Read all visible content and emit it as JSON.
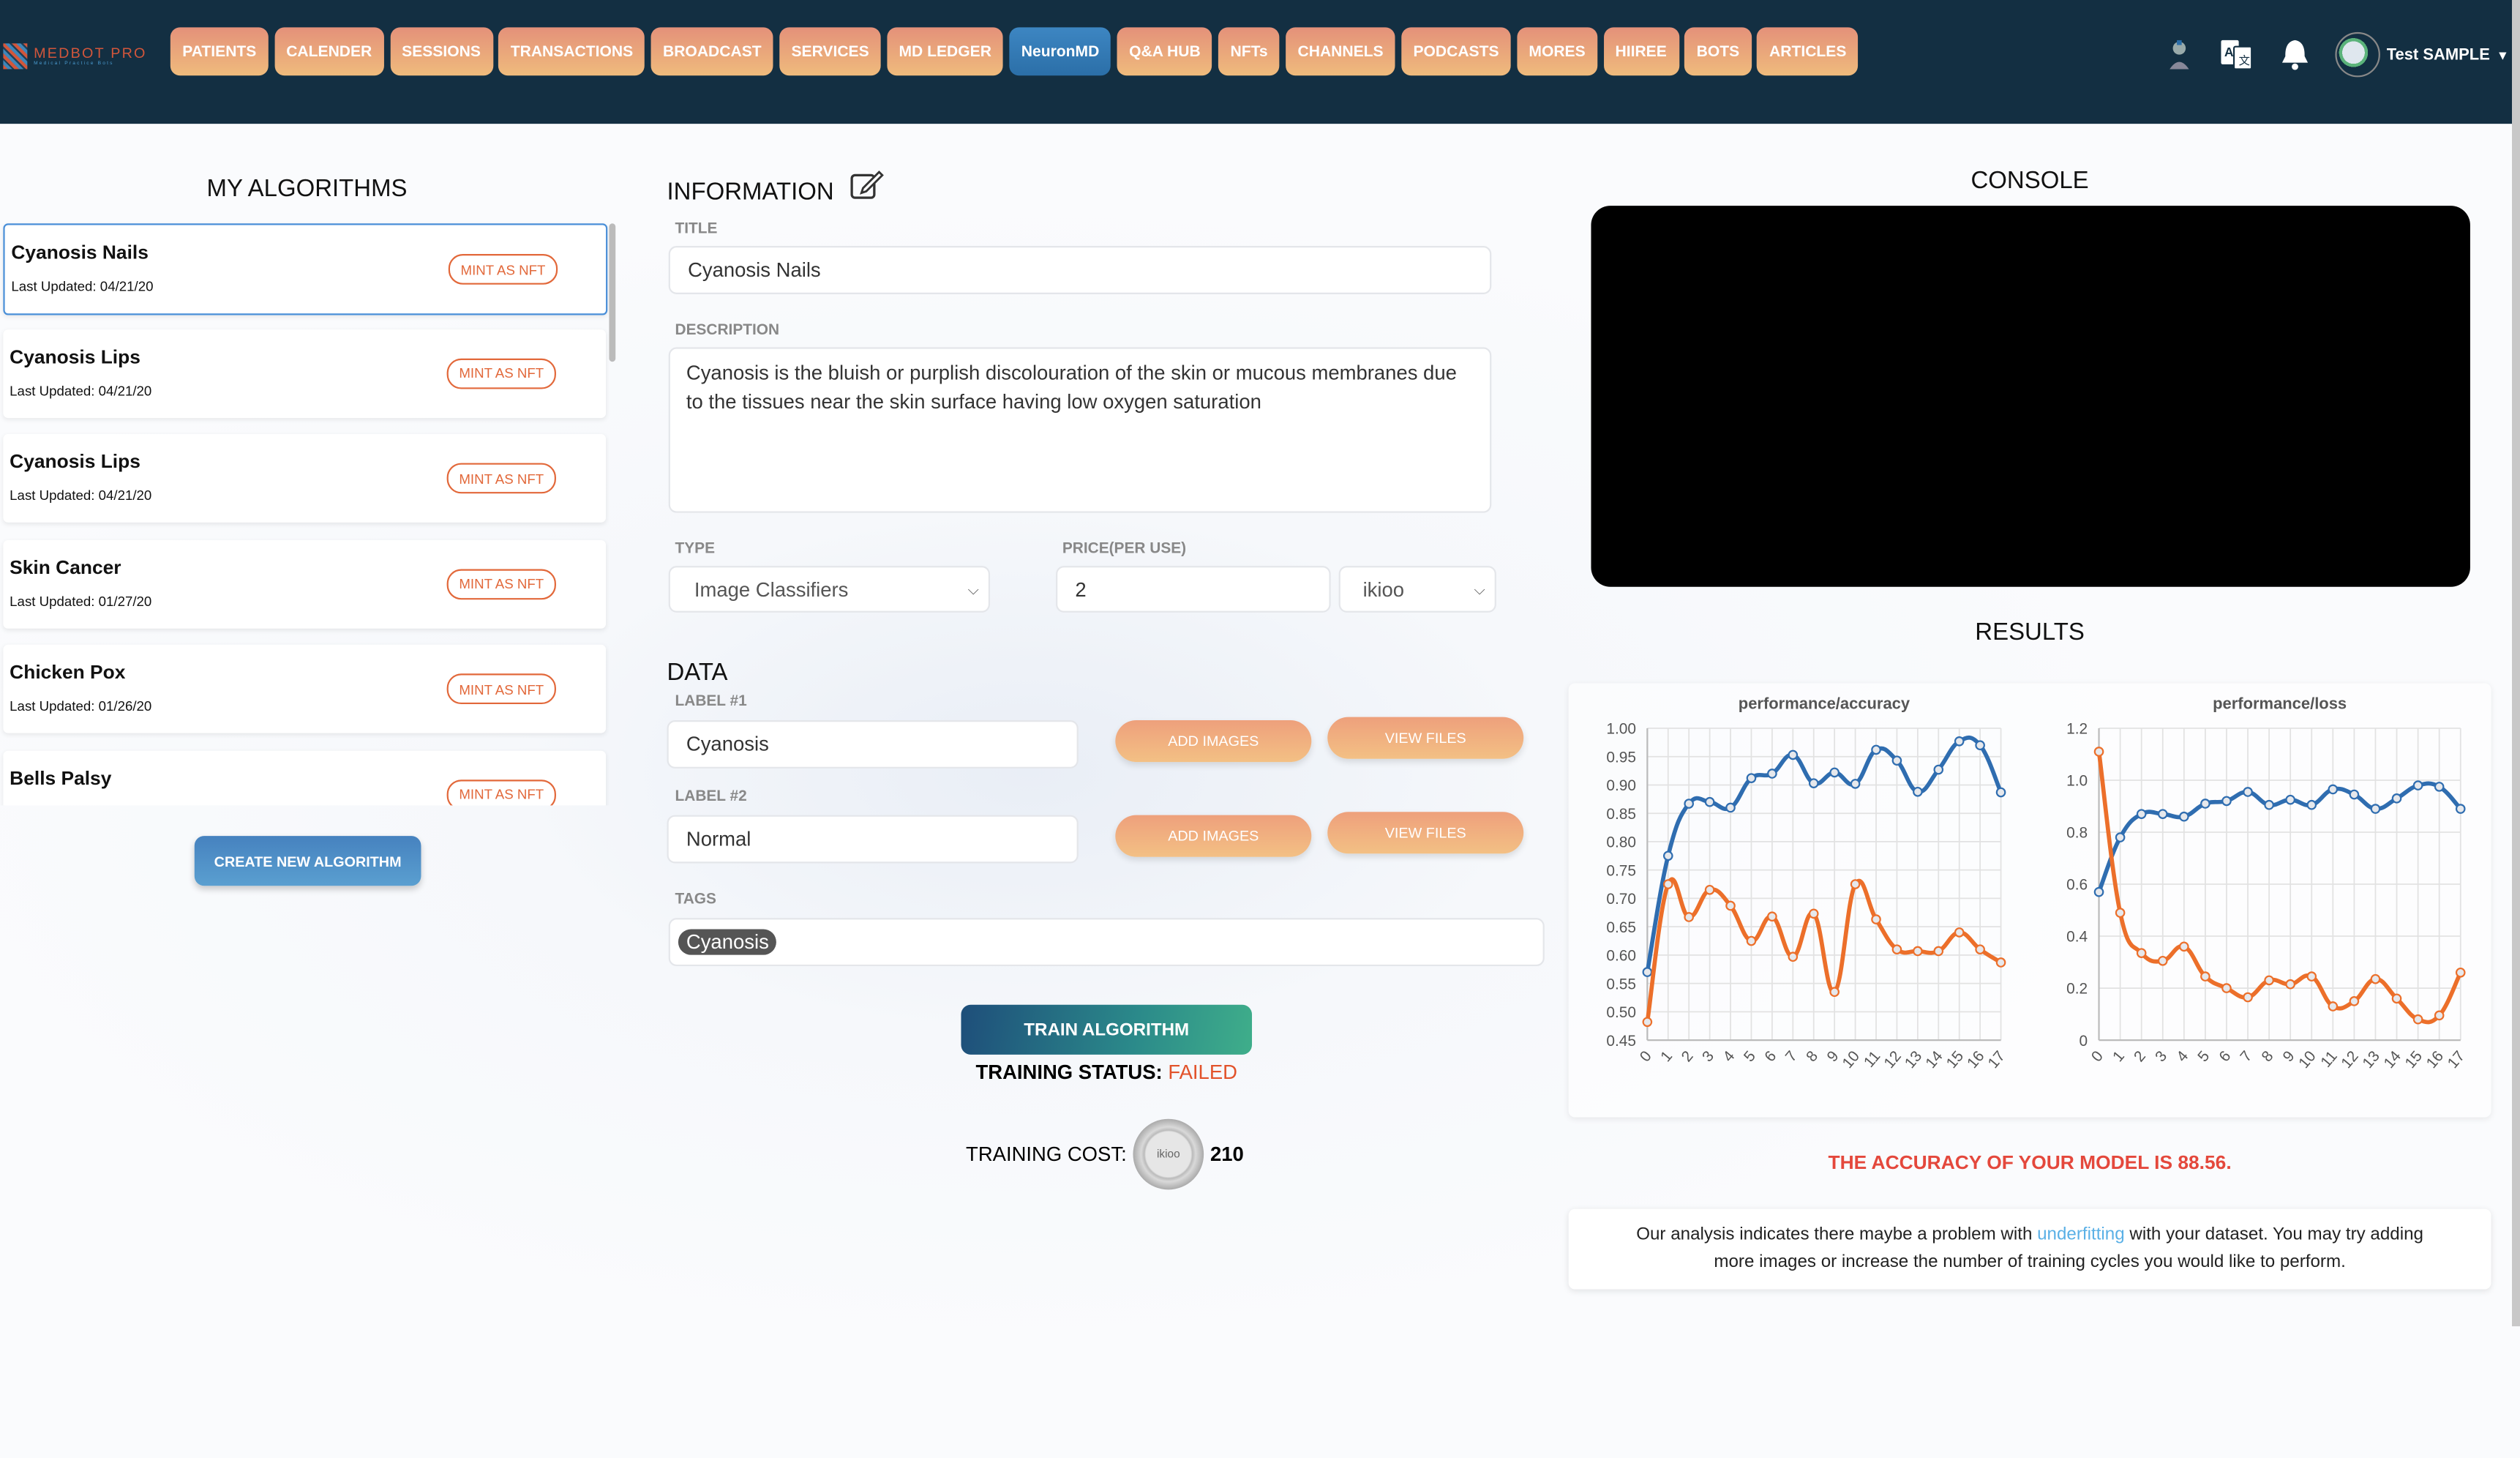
{
  "header": {
    "logo_text": "MEDBOT PRO",
    "logo_tagline": "Medical Practice Bots",
    "nav": [
      {
        "label": "PATIENTS"
      },
      {
        "label": "CALENDER"
      },
      {
        "label": "SESSIONS"
      },
      {
        "label": "TRANSACTIONS"
      },
      {
        "label": "BROADCAST"
      },
      {
        "label": "SERVICES"
      },
      {
        "label": "MD LEDGER"
      },
      {
        "label": "NeuronMD",
        "active": true
      },
      {
        "label": "Q&A HUB"
      },
      {
        "label": "NFTs"
      },
      {
        "label": "CHANNELS"
      },
      {
        "label": "PODCASTS"
      },
      {
        "label": "MORES"
      },
      {
        "label": "HIIREE"
      },
      {
        "label": "BOTS"
      },
      {
        "label": "ARTICLES"
      }
    ],
    "user_name": "Test SAMPLE",
    "icons": [
      "robot-avatar-icon",
      "translate-icon",
      "bell-icon",
      "user-avatar-icon",
      "caret-down-icon"
    ],
    "colors": {
      "header_bg": "#132f42",
      "nav_btn": "#e9a27a",
      "nav_active": "#3479b4"
    }
  },
  "algorithms": {
    "title": "MY ALGORITHMS",
    "items": [
      {
        "name": "Cyanosis Nails",
        "updated": "Last Updated: 04/21/20",
        "action": "MINT AS NFT",
        "selected": true
      },
      {
        "name": "Cyanosis Lips",
        "updated": "Last Updated: 04/21/20",
        "action": "MINT AS NFT"
      },
      {
        "name": "Cyanosis Lips",
        "updated": "Last Updated: 04/21/20",
        "action": "MINT AS NFT"
      },
      {
        "name": "Skin Cancer",
        "updated": "Last Updated: 01/27/20",
        "action": "MINT AS NFT"
      },
      {
        "name": "Chicken Pox",
        "updated": "Last Updated: 01/26/20",
        "action": "MINT AS NFT"
      },
      {
        "name": "Bells Palsy",
        "updated": "",
        "action": "MINT AS NFT"
      }
    ],
    "create_label": "CREATE NEW ALGORITHM"
  },
  "information": {
    "title": "INFORMATION",
    "title_label": "TITLE",
    "title_value": "Cyanosis Nails",
    "description_label": "DESCRIPTION",
    "description_value": "Cyanosis is the bluish or purplish discolouration of the skin or mucous membranes due to the tissues near the skin surface having low oxygen saturation",
    "type_label": "TYPE",
    "type_value": "Image Classifiers",
    "price_label": "PRICE(PER USE)",
    "price_value": "2",
    "currency_value": "ikioo"
  },
  "data_section": {
    "title": "DATA",
    "labels": [
      {
        "label": "LABEL #1",
        "value": "Cyanosis",
        "add": "ADD IMAGES",
        "view": "VIEW FILES"
      },
      {
        "label": "LABEL #2",
        "value": "Normal",
        "add": "ADD IMAGES",
        "view": "VIEW FILES"
      }
    ],
    "tags_label": "TAGS",
    "tags": [
      "Cyanosis"
    ],
    "train_label": "TRAIN ALGORITHM",
    "status_label": "TRAINING STATUS:",
    "status_value": "FAILED",
    "cost_label": "TRAINING COST:",
    "coin_text": "ikioo",
    "cost_value": "210"
  },
  "console": {
    "title": "CONSOLE"
  },
  "results": {
    "title": "RESULTS",
    "accuracy_text": "THE ACCURACY OF YOUR MODEL IS 88.56.",
    "analysis_before": "Our analysis indicates there maybe a problem with ",
    "analysis_link": "underfitting",
    "analysis_after": " with your dataset. You may try adding more images or increase the number of training cycles you would like to perform."
  },
  "chart_data": [
    {
      "type": "line",
      "title": "performance/accuracy",
      "x": [
        0,
        1,
        2,
        3,
        4,
        5,
        6,
        7,
        8,
        9,
        10,
        11,
        12,
        13,
        14,
        15,
        16,
        17
      ],
      "ylim": [
        0.45,
        1.0
      ],
      "yticks": [
        "1.00",
        "0.95",
        "0.90",
        "0.85",
        "0.80",
        "0.75",
        "0.70",
        "0.65",
        "0.60",
        "0.55",
        "0.50",
        "0.45"
      ],
      "grid": true,
      "series": [
        {
          "color": "#2f6db0",
          "values": [
            0.57,
            0.775,
            0.867,
            0.87,
            0.86,
            0.912,
            0.92,
            0.953,
            0.903,
            0.922,
            0.902,
            0.962,
            0.943,
            0.888,
            0.927,
            0.977,
            0.97,
            0.887
          ]
        },
        {
          "color": "#ec6f2a",
          "values": [
            0.482,
            0.725,
            0.667,
            0.715,
            0.687,
            0.625,
            0.668,
            0.597,
            0.673,
            0.535,
            0.725,
            0.663,
            0.61,
            0.607,
            0.607,
            0.64,
            0.61,
            0.587
          ]
        }
      ]
    },
    {
      "type": "line",
      "title": "performance/loss",
      "x": [
        0,
        1,
        2,
        3,
        4,
        5,
        6,
        7,
        8,
        9,
        10,
        11,
        12,
        13,
        14,
        15,
        16,
        17
      ],
      "ylim": [
        0,
        1.2
      ],
      "yticks": [
        "1.2",
        "1.0",
        "0.8",
        "0.6",
        "0.4",
        "0.2",
        "0"
      ],
      "grid": true,
      "series": [
        {
          "color": "#2f6db0",
          "values": [
            0.57,
            0.78,
            0.87,
            0.87,
            0.86,
            0.91,
            0.92,
            0.955,
            0.905,
            0.925,
            0.905,
            0.965,
            0.945,
            0.89,
            0.93,
            0.98,
            0.975,
            0.89
          ]
        },
        {
          "color": "#ec6f2a",
          "values": [
            1.11,
            0.49,
            0.335,
            0.305,
            0.36,
            0.245,
            0.2,
            0.165,
            0.23,
            0.215,
            0.245,
            0.13,
            0.15,
            0.235,
            0.16,
            0.08,
            0.095,
            0.26
          ]
        }
      ]
    }
  ]
}
